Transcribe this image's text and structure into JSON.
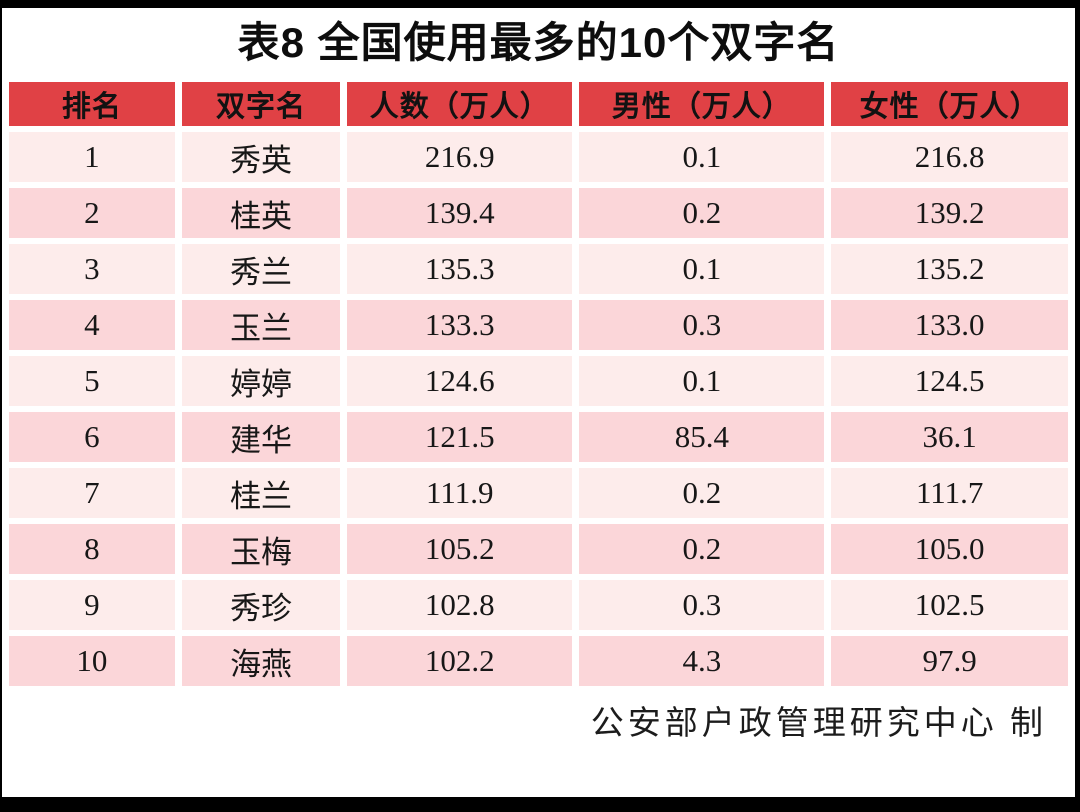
{
  "title": "表8 全国使用最多的10个双字名",
  "footer": {
    "credit": "公安部户政管理研究中心 制"
  },
  "colors": {
    "header_bg": "#e04145",
    "row_light": "#fdeceb",
    "row_dark": "#fbd6d9",
    "frame": "#000000",
    "text": "#171717"
  },
  "chart_data": {
    "type": "table",
    "title": "表8 全国使用最多的10个双字名",
    "columns": [
      "排名",
      "双字名",
      "人数（万人）",
      "男性（万人）",
      "女性（万人）"
    ],
    "rows": [
      [
        "1",
        "秀英",
        "216.9",
        "0.1",
        "216.8"
      ],
      [
        "2",
        "桂英",
        "139.4",
        "0.2",
        "139.2"
      ],
      [
        "3",
        "秀兰",
        "135.3",
        "0.1",
        "135.2"
      ],
      [
        "4",
        "玉兰",
        "133.3",
        "0.3",
        "133.0"
      ],
      [
        "5",
        "婷婷",
        "124.6",
        "0.1",
        "124.5"
      ],
      [
        "6",
        "建华",
        "121.5",
        "85.4",
        "36.1"
      ],
      [
        "7",
        "桂兰",
        "111.9",
        "0.2",
        "111.7"
      ],
      [
        "8",
        "玉梅",
        "105.2",
        "0.2",
        "105.0"
      ],
      [
        "9",
        "秀珍",
        "102.8",
        "0.3",
        "102.5"
      ],
      [
        "10",
        "海燕",
        "102.2",
        "4.3",
        "97.9"
      ]
    ],
    "source_note": "公安部户政管理研究中心 制"
  }
}
